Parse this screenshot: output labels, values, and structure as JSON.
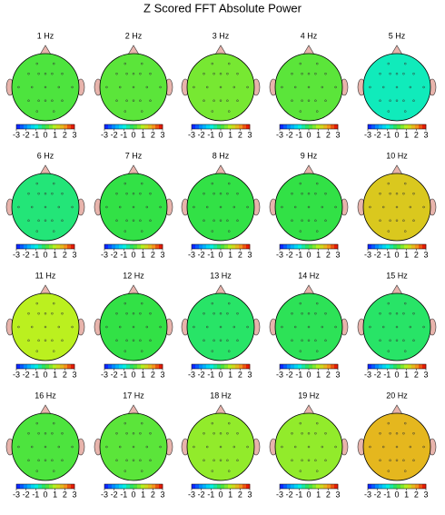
{
  "title": "Z Scored FFT Absolute Power",
  "chart_data": [
    {
      "type": "topomap",
      "title": "1 Hz",
      "value": 0.2,
      "lim": [
        -3,
        3
      ],
      "ticks": [
        -3,
        -2,
        -1,
        0,
        1,
        2,
        3
      ]
    },
    {
      "type": "topomap",
      "title": "2 Hz",
      "value": 0.3,
      "lim": [
        -3,
        3
      ],
      "ticks": [
        -3,
        -2,
        -1,
        0,
        1,
        2,
        3
      ]
    },
    {
      "type": "topomap",
      "title": "3 Hz",
      "value": 0.5,
      "lim": [
        -3,
        3
      ],
      "ticks": [
        -3,
        -2,
        -1,
        0,
        1,
        2,
        3
      ]
    },
    {
      "type": "topomap",
      "title": "4 Hz",
      "value": 0.3,
      "lim": [
        -3,
        3
      ],
      "ticks": [
        -3,
        -2,
        -1,
        0,
        1,
        2,
        3
      ]
    },
    {
      "type": "topomap",
      "title": "5 Hz",
      "value": -0.7,
      "lim": [
        -3,
        3
      ],
      "ticks": [
        -3,
        -2,
        -1,
        0,
        1,
        2,
        3
      ]
    },
    {
      "type": "topomap",
      "title": "6 Hz",
      "value": -0.3,
      "lim": [
        -3,
        3
      ],
      "ticks": [
        -3,
        -2,
        -1,
        0,
        1,
        2,
        3
      ]
    },
    {
      "type": "topomap",
      "title": "7 Hz",
      "value": 0,
      "lim": [
        -3,
        3
      ],
      "ticks": [
        -3,
        -2,
        -1,
        0,
        1,
        2,
        3
      ]
    },
    {
      "type": "topomap",
      "title": "8 Hz",
      "value": 0,
      "lim": [
        -3,
        3
      ],
      "ticks": [
        -3,
        -2,
        -1,
        0,
        1,
        2,
        3
      ]
    },
    {
      "type": "topomap",
      "title": "9 Hz",
      "value": 0,
      "lim": [
        -3,
        3
      ],
      "ticks": [
        -3,
        -2,
        -1,
        0,
        1,
        2,
        3
      ]
    },
    {
      "type": "topomap",
      "title": "10 Hz",
      "value": 1.5,
      "lim": [
        -3,
        3
      ],
      "ticks": [
        -3,
        -2,
        -1,
        0,
        1,
        2,
        3
      ]
    },
    {
      "type": "topomap",
      "title": "11 Hz",
      "value": 1,
      "lim": [
        -3,
        3
      ],
      "ticks": [
        -3,
        -2,
        -1,
        0,
        1,
        2,
        3
      ]
    },
    {
      "type": "topomap",
      "title": "12 Hz",
      "value": 0,
      "lim": [
        -3,
        3
      ],
      "ticks": [
        -3,
        -2,
        -1,
        0,
        1,
        2,
        3
      ]
    },
    {
      "type": "topomap",
      "title": "13 Hz",
      "value": -0.2,
      "lim": [
        -3,
        3
      ],
      "ticks": [
        -3,
        -2,
        -1,
        0,
        1,
        2,
        3
      ]
    },
    {
      "type": "topomap",
      "title": "14 Hz",
      "value": -0.1,
      "lim": [
        -3,
        3
      ],
      "ticks": [
        -3,
        -2,
        -1,
        0,
        1,
        2,
        3
      ]
    },
    {
      "type": "topomap",
      "title": "15 Hz",
      "value": -0.2,
      "lim": [
        -3,
        3
      ],
      "ticks": [
        -3,
        -2,
        -1,
        0,
        1,
        2,
        3
      ]
    },
    {
      "type": "topomap",
      "title": "16 Hz",
      "value": 0.2,
      "lim": [
        -3,
        3
      ],
      "ticks": [
        -3,
        -2,
        -1,
        0,
        1,
        2,
        3
      ]
    },
    {
      "type": "topomap",
      "title": "17 Hz",
      "value": 0.3,
      "lim": [
        -3,
        3
      ],
      "ticks": [
        -3,
        -2,
        -1,
        0,
        1,
        2,
        3
      ]
    },
    {
      "type": "topomap",
      "title": "18 Hz",
      "value": 0.7,
      "lim": [
        -3,
        3
      ],
      "ticks": [
        -3,
        -2,
        -1,
        0,
        1,
        2,
        3
      ]
    },
    {
      "type": "topomap",
      "title": "19 Hz",
      "value": 0.7,
      "lim": [
        -3,
        3
      ],
      "ticks": [
        -3,
        -2,
        -1,
        0,
        1,
        2,
        3
      ]
    },
    {
      "type": "topomap",
      "title": "20 Hz",
      "value": 1.7,
      "lim": [
        -3,
        3
      ],
      "ticks": [
        -3,
        -2,
        -1,
        0,
        1,
        2,
        3
      ]
    }
  ]
}
